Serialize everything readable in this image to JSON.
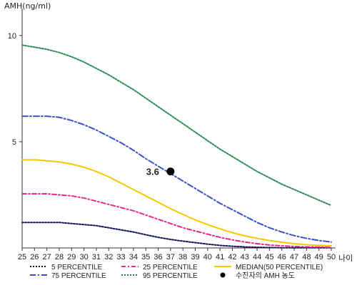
{
  "chart_data": {
    "type": "line",
    "ylabel": "AMH(ng/ml)",
    "xlabel": "나이",
    "xlim": [
      25,
      50
    ],
    "ylim": [
      0,
      11
    ],
    "x_ticks": [
      25,
      26,
      27,
      28,
      29,
      30,
      31,
      32,
      33,
      34,
      35,
      36,
      37,
      38,
      39,
      40,
      41,
      42,
      43,
      44,
      45,
      46,
      47,
      48,
      49,
      50
    ],
    "y_ticks": [
      5,
      10
    ],
    "grid": false,
    "legend_position": "bottom",
    "series": [
      {
        "name": "5 PERCENTILE",
        "color": "#14145a",
        "dash": "2,2",
        "x": [
          25,
          26,
          27,
          28,
          29,
          30,
          31,
          32,
          33,
          34,
          35,
          36,
          37,
          38,
          39,
          40,
          41,
          42,
          43,
          44,
          45,
          46,
          47,
          48,
          49,
          50
        ],
        "y": [
          1.2,
          1.2,
          1.2,
          1.2,
          1.15,
          1.1,
          1.05,
          0.95,
          0.85,
          0.75,
          0.62,
          0.5,
          0.4,
          0.32,
          0.25,
          0.18,
          0.12,
          0.08,
          0.05,
          0.03,
          0.02,
          0.01,
          0.01,
          0.01,
          0.01,
          0.01
        ]
      },
      {
        "name": "25 PERCENTILE",
        "color": "#e8288c",
        "dash": "6,3,2,3",
        "x": [
          25,
          26,
          27,
          28,
          29,
          30,
          31,
          32,
          33,
          34,
          35,
          36,
          37,
          38,
          39,
          40,
          41,
          42,
          43,
          44,
          45,
          46,
          47,
          48,
          49,
          50
        ],
        "y": [
          2.55,
          2.55,
          2.55,
          2.5,
          2.45,
          2.35,
          2.2,
          2.05,
          1.9,
          1.75,
          1.55,
          1.35,
          1.15,
          0.95,
          0.8,
          0.65,
          0.5,
          0.38,
          0.28,
          0.2,
          0.14,
          0.1,
          0.07,
          0.05,
          0.04,
          0.03
        ]
      },
      {
        "name": "75 PERCENTILE",
        "color": "#3c50c8",
        "dash": "8,3,2,3",
        "x": [
          25,
          26,
          27,
          28,
          29,
          30,
          31,
          32,
          33,
          34,
          35,
          36,
          37,
          38,
          39,
          40,
          41,
          42,
          43,
          44,
          45,
          46,
          47,
          48,
          49,
          50
        ],
        "y": [
          6.2,
          6.2,
          6.2,
          6.15,
          6.0,
          5.8,
          5.55,
          5.25,
          4.95,
          4.6,
          4.2,
          3.85,
          3.5,
          3.15,
          2.8,
          2.45,
          2.1,
          1.8,
          1.5,
          1.2,
          0.95,
          0.75,
          0.58,
          0.45,
          0.35,
          0.28
        ]
      },
      {
        "name": "95 PERCENTILE",
        "color": "#2e8b57",
        "dash": "2,2",
        "x": [
          25,
          26,
          27,
          28,
          29,
          30,
          31,
          32,
          33,
          34,
          35,
          36,
          37,
          38,
          39,
          40,
          41,
          42,
          43,
          44,
          45,
          46,
          47,
          48,
          49,
          50
        ],
        "y": [
          9.55,
          9.45,
          9.35,
          9.2,
          9.0,
          8.75,
          8.45,
          8.15,
          7.8,
          7.45,
          7.05,
          6.65,
          6.25,
          5.85,
          5.45,
          5.05,
          4.65,
          4.3,
          3.95,
          3.6,
          3.3,
          3.0,
          2.75,
          2.5,
          2.25,
          2.0
        ]
      },
      {
        "name": "MEDIAN(50 PERCENTILE)",
        "color": "#f5c800",
        "dash": "",
        "x": [
          25,
          26,
          27,
          28,
          29,
          30,
          31,
          32,
          33,
          34,
          35,
          36,
          37,
          38,
          39,
          40,
          41,
          42,
          43,
          44,
          45,
          46,
          47,
          48,
          49,
          50
        ],
        "y": [
          4.15,
          4.15,
          4.1,
          4.05,
          3.95,
          3.8,
          3.6,
          3.35,
          3.05,
          2.75,
          2.45,
          2.15,
          1.85,
          1.58,
          1.32,
          1.1,
          0.9,
          0.72,
          0.57,
          0.45,
          0.35,
          0.27,
          0.2,
          0.15,
          0.12,
          0.1
        ]
      }
    ],
    "marker": {
      "name": "수진자의 AMH 농도",
      "x": 37,
      "y": 3.6,
      "label": "3.6",
      "color": "#000000"
    },
    "legend_order": [
      "5 PERCENTILE",
      "25 PERCENTILE",
      "MEDIAN(50 PERCENTILE)",
      "75 PERCENTILE",
      "95 PERCENTILE",
      "수진자의 AMH 농도"
    ]
  }
}
